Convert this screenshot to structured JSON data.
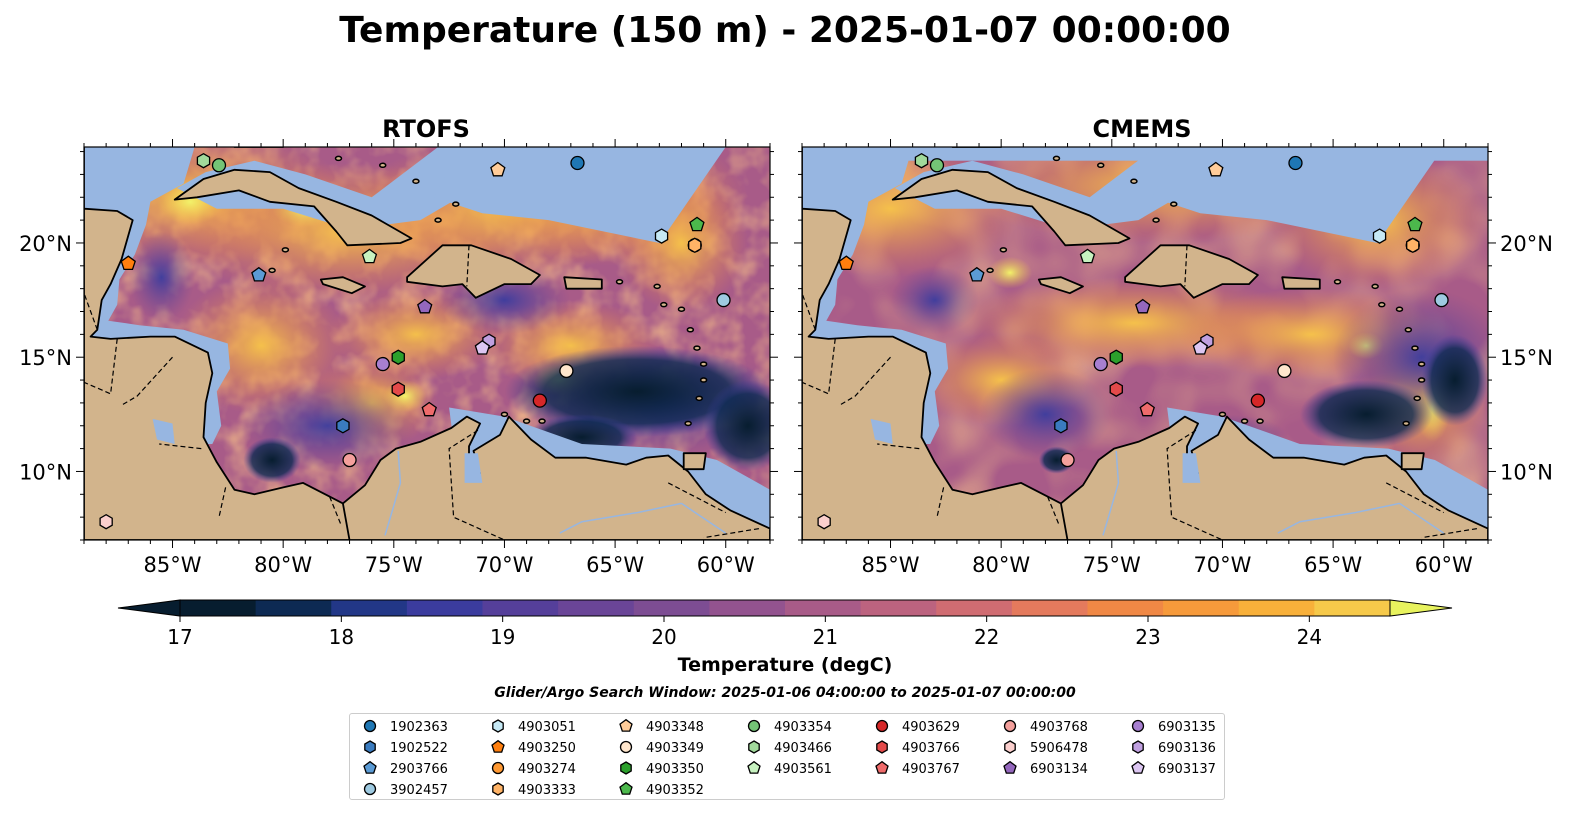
{
  "figure": {
    "title": "Temperature (150 m) - 2025-01-07 00:00:00",
    "search_window": "Glider/Argo Search Window: 2025-01-06 04:00:00 to 2025-01-07 00:00:00"
  },
  "panels": [
    {
      "title": "RTOFS"
    },
    {
      "title": "CMEMS"
    }
  ],
  "axes": {
    "lon_ticks": [
      "85°W",
      "80°W",
      "75°W",
      "70°W",
      "65°W",
      "60°W"
    ],
    "lon_values": [
      -85,
      -80,
      -75,
      -70,
      -65,
      -60
    ],
    "lat_ticks": [
      "20°N",
      "15°N",
      "10°N"
    ],
    "lat_values": [
      20,
      15,
      10
    ],
    "lon_range": [
      -89,
      -58
    ],
    "lat_range": [
      7,
      24.2
    ]
  },
  "colorbar": {
    "label": "Temperature (degC)",
    "ticks": [
      "17",
      "18",
      "19",
      "20",
      "21",
      "22",
      "23",
      "24"
    ],
    "tick_values": [
      17,
      18,
      19,
      20,
      21,
      22,
      23,
      24
    ],
    "range": [
      17,
      24.5
    ],
    "extend": "both",
    "colormap": "thermal",
    "colors": [
      "#071d2f",
      "#0d2a53",
      "#223787",
      "#3b3c9e",
      "#553f9a",
      "#6a4597",
      "#7d4d93",
      "#93538f",
      "#a85b88",
      "#bc637f",
      "#d06c72",
      "#e47a5d",
      "#f08845",
      "#f69a3b",
      "#f8b03a",
      "#f6c94a",
      "#e8f35e"
    ]
  },
  "colors": {
    "land": "#d2b48c",
    "ocean_shallow": "#97b6e1",
    "coast": "#000000",
    "rivers": "#97b6e1"
  },
  "legend": {
    "columns": [
      [
        {
          "id": "1902363",
          "marker": "circle",
          "color": "#1f77b4"
        },
        {
          "id": "1902522",
          "marker": "hexagon",
          "color": "#3a7bbf"
        },
        {
          "id": "2903766",
          "marker": "pentagon",
          "color": "#5b9bd5"
        },
        {
          "id": "3902457",
          "marker": "circle",
          "color": "#9ecae1"
        }
      ],
      [
        {
          "id": "4903051",
          "marker": "hexagon",
          "color": "#c6e9f5"
        },
        {
          "id": "4903250",
          "marker": "pentagon",
          "color": "#ff7f0e"
        },
        {
          "id": "4903274",
          "marker": "circle",
          "color": "#ff9933"
        },
        {
          "id": "4903333",
          "marker": "hexagon",
          "color": "#ffb366"
        }
      ],
      [
        {
          "id": "4903348",
          "marker": "pentagon",
          "color": "#ffcc99"
        },
        {
          "id": "4903349",
          "marker": "circle",
          "color": "#ffe6cc"
        },
        {
          "id": "4903350",
          "marker": "hexagon",
          "color": "#2ca02c"
        },
        {
          "id": "4903352",
          "marker": "pentagon",
          "color": "#4cb84c"
        }
      ],
      [
        {
          "id": "4903354",
          "marker": "circle",
          "color": "#74c476"
        },
        {
          "id": "4903466",
          "marker": "hexagon",
          "color": "#a1d99b"
        },
        {
          "id": "4903561",
          "marker": "pentagon",
          "color": "#c7f2c0"
        }
      ],
      [
        {
          "id": "4903629",
          "marker": "circle",
          "color": "#d62728"
        },
        {
          "id": "4903766",
          "marker": "hexagon",
          "color": "#e34a4a"
        },
        {
          "id": "4903767",
          "marker": "pentagon",
          "color": "#ef6b6b"
        }
      ],
      [
        {
          "id": "4903768",
          "marker": "circle",
          "color": "#f4a09c"
        },
        {
          "id": "5906478",
          "marker": "hexagon",
          "color": "#fbcfcd"
        },
        {
          "id": "6903134",
          "marker": "pentagon",
          "color": "#9467bd"
        }
      ],
      [
        {
          "id": "6903135",
          "marker": "circle",
          "color": "#a77fd0"
        },
        {
          "id": "6903136",
          "marker": "hexagon",
          "color": "#c0a0e0"
        },
        {
          "id": "6903137",
          "marker": "pentagon",
          "color": "#dcc6f2"
        }
      ]
    ]
  },
  "floats": [
    {
      "id": "1902363",
      "lon": -66.7,
      "lat": 23.5
    },
    {
      "id": "1902522",
      "lon": -77.3,
      "lat": 12.0
    },
    {
      "id": "2903766",
      "lon": -81.1,
      "lat": 18.6
    },
    {
      "id": "3902457",
      "lon": -60.1,
      "lat": 17.5
    },
    {
      "id": "4903051",
      "lon": -62.9,
      "lat": 20.3
    },
    {
      "id": "4903250",
      "lon": -87.0,
      "lat": 19.1
    },
    {
      "id": "4903274",
      "lon": -61.4,
      "lat": 19.9
    },
    {
      "id": "4903333",
      "lon": -61.4,
      "lat": 19.9
    },
    {
      "id": "4903348",
      "lon": -70.3,
      "lat": 23.2
    },
    {
      "id": "4903349",
      "lon": -67.2,
      "lat": 14.4
    },
    {
      "id": "4903350",
      "lon": -74.8,
      "lat": 15.0
    },
    {
      "id": "4903352",
      "lon": -61.3,
      "lat": 20.8
    },
    {
      "id": "4903354",
      "lon": -82.9,
      "lat": 23.4
    },
    {
      "id": "4903466",
      "lon": -83.6,
      "lat": 23.6
    },
    {
      "id": "4903561",
      "lon": -76.1,
      "lat": 19.4
    },
    {
      "id": "4903629",
      "lon": -68.4,
      "lat": 13.1
    },
    {
      "id": "4903766",
      "lon": -74.8,
      "lat": 13.6
    },
    {
      "id": "4903767",
      "lon": -73.4,
      "lat": 12.7
    },
    {
      "id": "4903768",
      "lon": -77.0,
      "lat": 10.5
    },
    {
      "id": "5906478",
      "lon": -88.0,
      "lat": 7.8
    },
    {
      "id": "6903134",
      "lon": -73.6,
      "lat": 17.2
    },
    {
      "id": "6903135",
      "lon": -75.5,
      "lat": 14.7
    },
    {
      "id": "6903136",
      "lon": -70.7,
      "lat": 15.7
    },
    {
      "id": "6903137",
      "lon": -71.0,
      "lat": 15.4
    }
  ]
}
